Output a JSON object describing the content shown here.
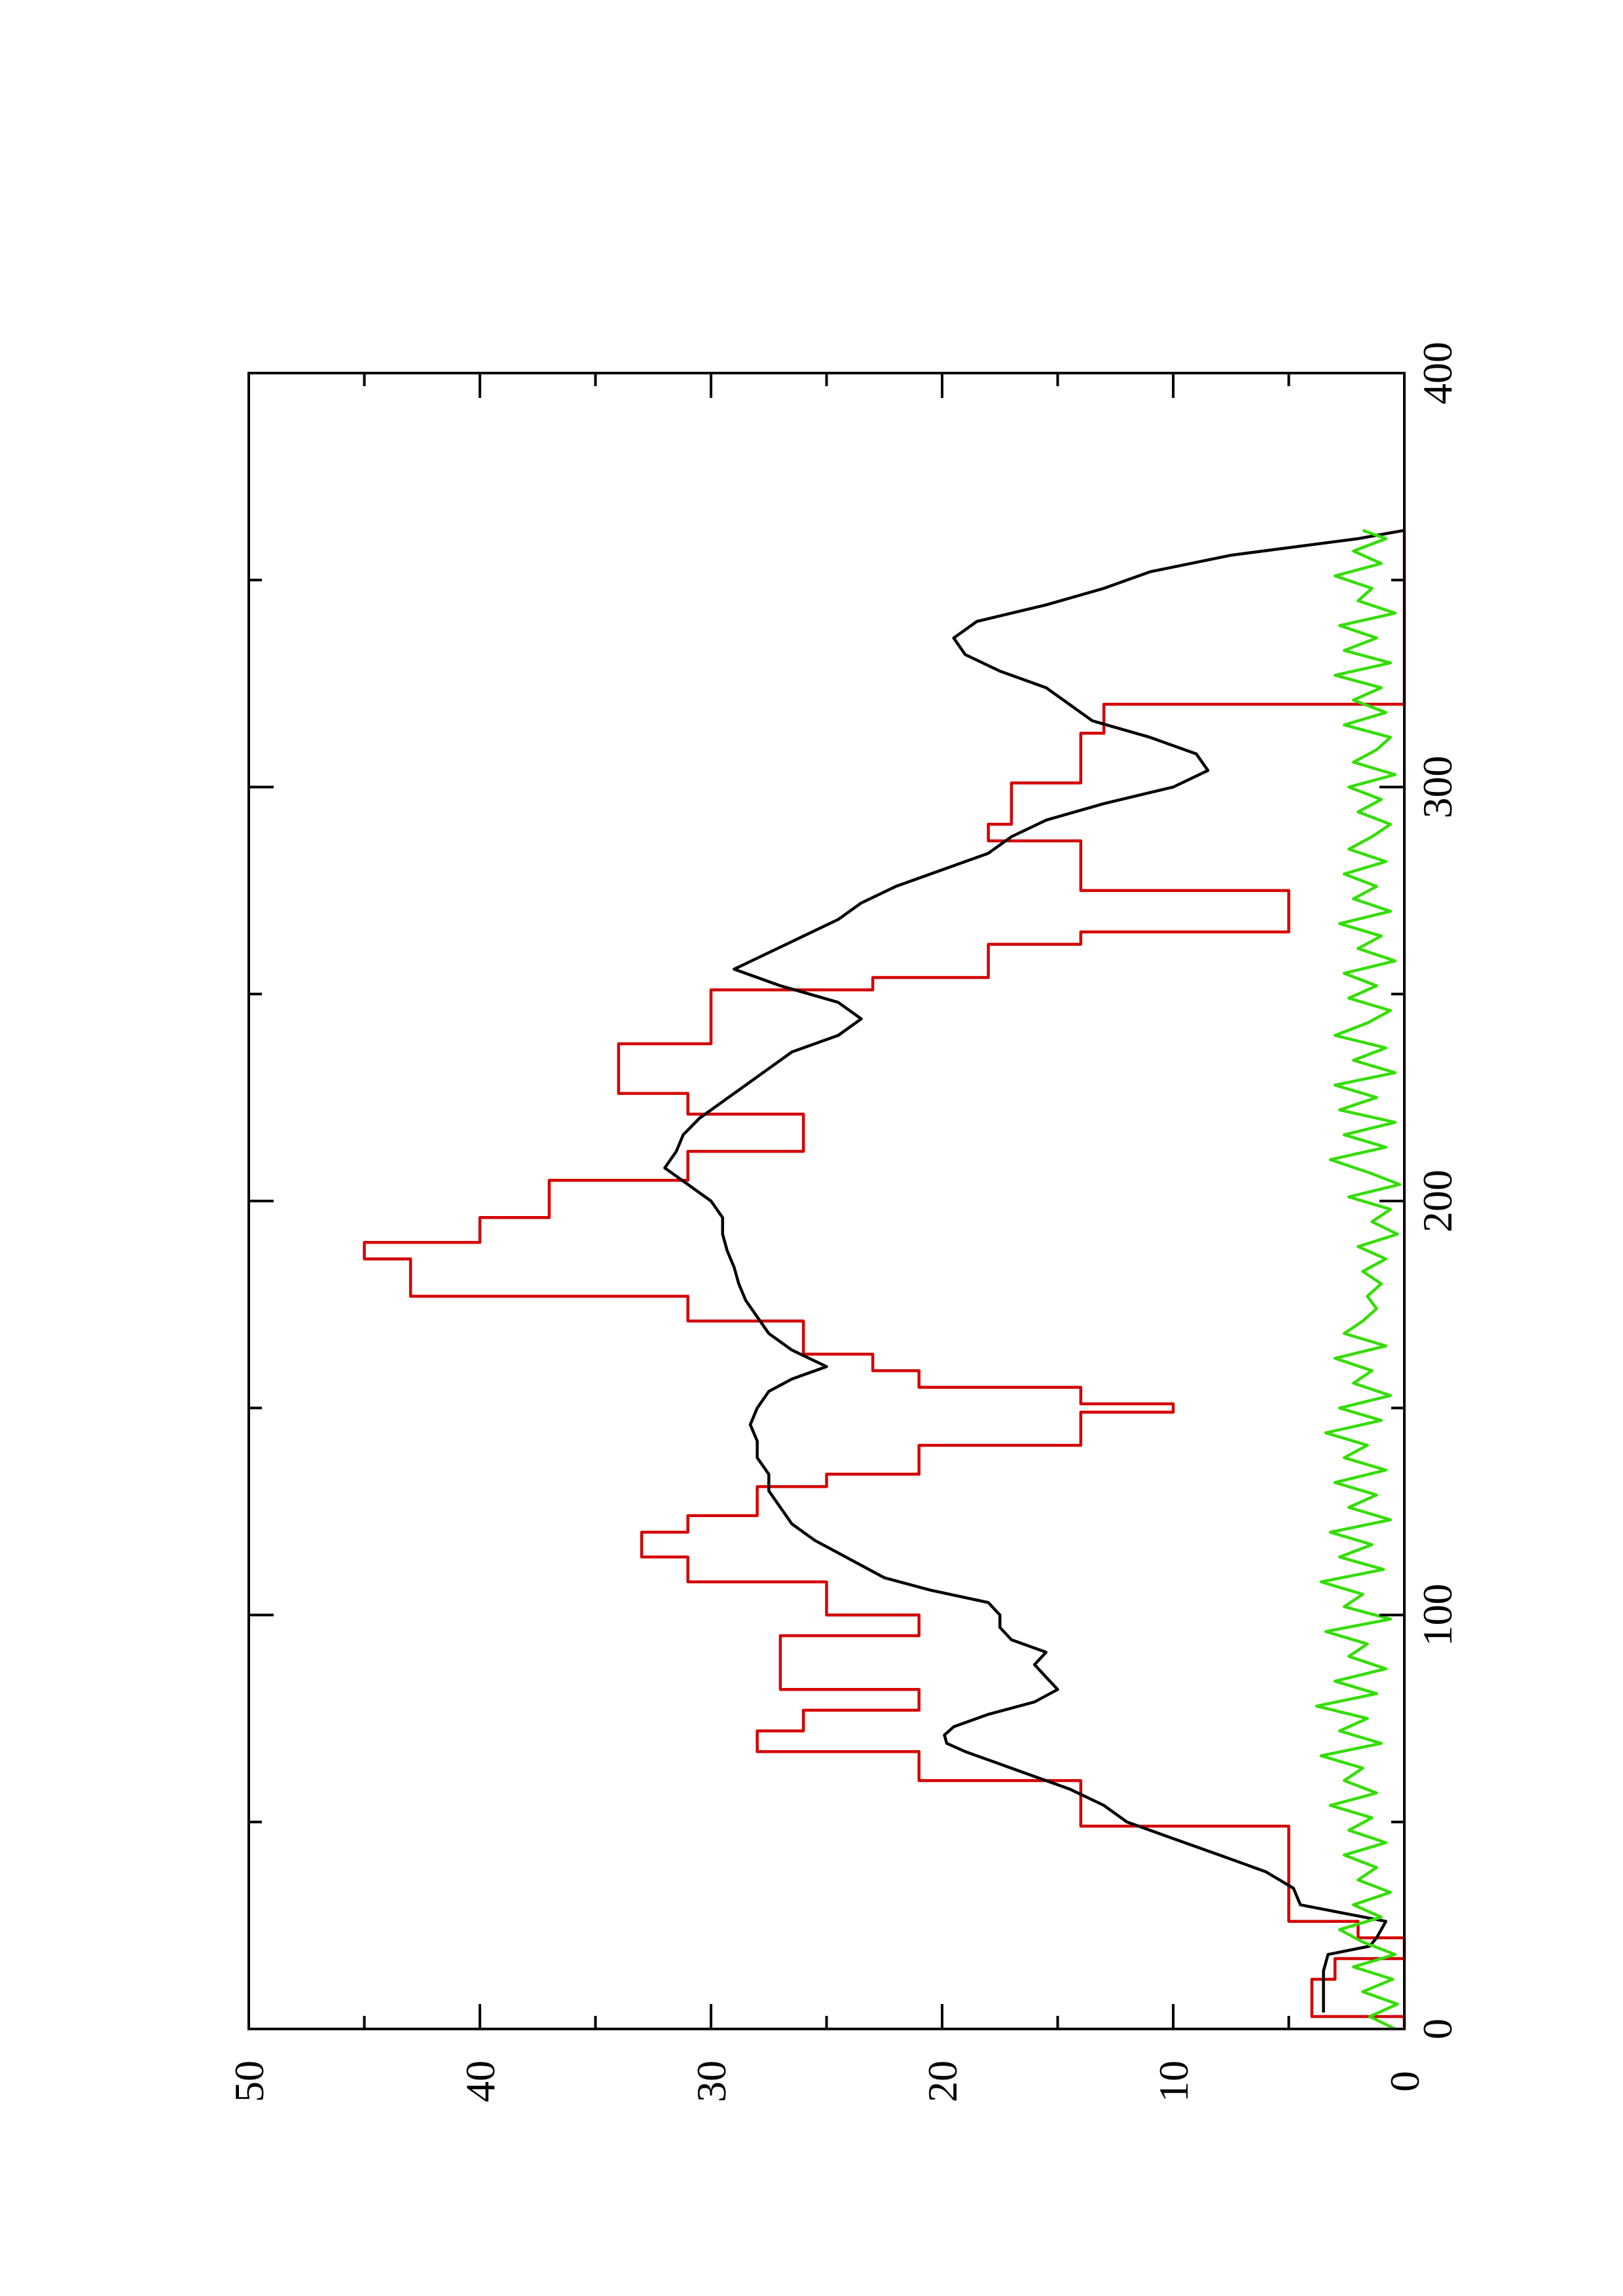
{
  "chart_data": {
    "type": "line",
    "orientation": "rotated-90-ccw",
    "title": "",
    "xlabel": "",
    "ylabel": "",
    "xlim": [
      0,
      400
    ],
    "ylim": [
      0,
      50
    ],
    "x_ticks": [
      0,
      100,
      200,
      300,
      400
    ],
    "y_ticks": [
      0,
      10,
      20,
      30,
      40,
      50
    ],
    "x_tick_labels": [
      "0",
      "100",
      "200",
      "300",
      "400"
    ],
    "y_tick_labels": [
      "0",
      "10",
      "20",
      "30",
      "40",
      "50"
    ],
    "grid": false,
    "legend": "none",
    "series": [
      {
        "color": "#d40000",
        "style": "step",
        "x": [
          0,
          3,
          3,
          12,
          12,
          17,
          17,
          22,
          22,
          26,
          26,
          37,
          37,
          49,
          49,
          60,
          60,
          67,
          67,
          72,
          72,
          77,
          77,
          82,
          82,
          84,
          84,
          95,
          95,
          100,
          100,
          106,
          106,
          108,
          108,
          114,
          114,
          120,
          120,
          124,
          124,
          131,
          131,
          134,
          134,
          141,
          141,
          149,
          149,
          151,
          151,
          155,
          155,
          159,
          159,
          163,
          163,
          171,
          171,
          177,
          177,
          186,
          186,
          190,
          190,
          196,
          196,
          205,
          205,
          212,
          212,
          221,
          221,
          226,
          226,
          238,
          238,
          251,
          251,
          254,
          254,
          262,
          262,
          265,
          265,
          275,
          275,
          287,
          287,
          291,
          291,
          301,
          301,
          313,
          313,
          320,
          320,
          327,
          327,
          336,
          336,
          342,
          342,
          348,
          348,
          362
        ],
        "y": [
          0,
          0,
          4,
          4,
          3,
          3,
          0,
          0,
          2,
          2,
          5,
          5,
          5,
          5,
          14,
          14,
          21,
          21,
          28,
          28,
          26,
          26,
          21,
          21,
          27,
          27,
          27,
          27,
          21,
          21,
          25,
          25,
          25,
          25,
          31,
          31,
          33,
          33,
          31,
          31,
          28,
          28,
          25,
          25,
          21,
          21,
          14,
          14,
          10,
          10,
          14,
          14,
          21,
          21,
          23,
          23,
          26,
          26,
          31,
          31,
          43,
          43,
          45,
          45,
          40,
          40,
          37,
          37,
          31,
          31,
          26,
          26,
          31,
          31,
          34,
          34,
          30,
          30,
          23,
          23,
          18,
          18,
          14,
          14,
          5,
          5,
          14,
          14,
          18,
          18,
          17,
          17,
          14,
          14,
          13,
          13,
          0,
          0,
          0,
          0,
          0,
          0,
          0,
          0,
          0,
          0
        ]
      },
      {
        "color": "#000000",
        "style": "line",
        "x": [
          4,
          6,
          10,
          14,
          18,
          20,
          22,
          26,
          30,
          34,
          38,
          42,
          46,
          50,
          54,
          58,
          61,
          64,
          67,
          69,
          71,
          73,
          76,
          79,
          82,
          85,
          88,
          91,
          94,
          97,
          100,
          103,
          106,
          109,
          112,
          115,
          118,
          122,
          126,
          130,
          134,
          138,
          142,
          146,
          150,
          154,
          157,
          160,
          164,
          168,
          172,
          176,
          180,
          184,
          188,
          192,
          196,
          200,
          204,
          208,
          212,
          216,
          220,
          224,
          228,
          232,
          236,
          240,
          244,
          248,
          252,
          256,
          260,
          264,
          268,
          272,
          276,
          280,
          284,
          288,
          292,
          296,
          300,
          304,
          308,
          312,
          316,
          320,
          324,
          328,
          332,
          336,
          340,
          344,
          348,
          352,
          356,
          360,
          362
        ],
        "y": [
          3.5,
          3.5,
          3.5,
          3.5,
          3.3,
          1.5,
          1.2,
          0.8,
          4.5,
          4.8,
          6,
          8,
          10,
          12,
          13,
          14.5,
          16,
          17.5,
          19,
          19.8,
          19.9,
          19.5,
          18,
          16,
          15,
          15.5,
          16,
          15.5,
          17,
          17.5,
          17.5,
          18,
          20.5,
          22.5,
          23.5,
          24.5,
          25.5,
          26.5,
          27,
          27.5,
          27.5,
          28,
          28,
          28.3,
          28,
          27.5,
          26.5,
          25,
          26.5,
          27.5,
          28,
          28.5,
          28.8,
          29,
          29.3,
          29.5,
          29.5,
          30,
          31,
          32,
          31.5,
          31.2,
          30.5,
          29.5,
          28.5,
          27.5,
          26.5,
          24.5,
          23.5,
          24.5,
          27,
          29,
          27.5,
          26,
          24.5,
          23.5,
          22,
          20,
          18,
          17,
          15.5,
          13,
          10,
          8.5,
          9,
          11,
          13.5,
          14.5,
          15.5,
          17.5,
          19,
          19.5,
          18.5,
          15.5,
          13,
          11,
          7.5,
          2,
          0
        ]
      },
      {
        "color": "#33dd00",
        "style": "line",
        "x": [
          0,
          3,
          6,
          9,
          12,
          15,
          18,
          21,
          24,
          27,
          30,
          33,
          36,
          39,
          42,
          45,
          48,
          51,
          54,
          57,
          60,
          63,
          66,
          69,
          72,
          75,
          78,
          81,
          84,
          87,
          90,
          93,
          96,
          99,
          102,
          105,
          108,
          111,
          114,
          117,
          120,
          123,
          126,
          129,
          132,
          135,
          138,
          141,
          144,
          147,
          150,
          153,
          156,
          159,
          162,
          165,
          168,
          171,
          174,
          177,
          180,
          183,
          186,
          189,
          192,
          195,
          198,
          201,
          204,
          207,
          210,
          213,
          216,
          219,
          222,
          225,
          228,
          231,
          234,
          237,
          240,
          243,
          246,
          249,
          252,
          255,
          258,
          261,
          264,
          267,
          270,
          273,
          276,
          279,
          282,
          285,
          288,
          291,
          294,
          297,
          300,
          303,
          306,
          309,
          312,
          315,
          318,
          321,
          324,
          327,
          330,
          333,
          336,
          339,
          342,
          345,
          348,
          351,
          354,
          357,
          360,
          362
        ],
        "y": [
          0.4,
          1.5,
          0.3,
          1.8,
          0.5,
          2.2,
          0.4,
          1.8,
          2.8,
          1.0,
          2.2,
          0.6,
          2.0,
          1.2,
          2.6,
          0.8,
          2.4,
          1.4,
          3.2,
          1.2,
          2.6,
          1.8,
          3.6,
          1.0,
          2.8,
          1.6,
          3.8,
          1.2,
          3.0,
          0.8,
          2.4,
          1.6,
          3.4,
          0.6,
          2.6,
          1.8,
          3.6,
          0.9,
          2.8,
          1.4,
          3.2,
          0.6,
          2.4,
          1.2,
          3.0,
          0.8,
          2.6,
          1.6,
          3.4,
          1.0,
          2.8,
          0.6,
          2.2,
          1.4,
          3.0,
          0.8,
          2.6,
          1.8,
          1.2,
          1.6,
          1.0,
          1.8,
          0.8,
          2.0,
          0.3,
          1.4,
          0.6,
          2.4,
          0.2,
          1.6,
          3.2,
          0.8,
          2.6,
          0.4,
          2.8,
          1.2,
          3.0,
          0.4,
          2.2,
          0.8,
          3.0,
          1.6,
          0.6,
          2.4,
          1.2,
          2.6,
          0.4,
          2.0,
          1.0,
          2.8,
          0.6,
          2.2,
          1.2,
          2.6,
          0.8,
          2.4,
          1.4,
          0.6,
          2.0,
          1.0,
          2.4,
          0.4,
          2.2,
          1.2,
          0.6,
          2.6,
          0.8,
          2.2,
          1.0,
          3.0,
          0.6,
          2.6,
          1.2,
          2.8,
          0.4,
          2.0,
          1.4,
          3.0,
          1.0,
          2.2,
          0.8,
          1.8
        ]
      }
    ]
  }
}
